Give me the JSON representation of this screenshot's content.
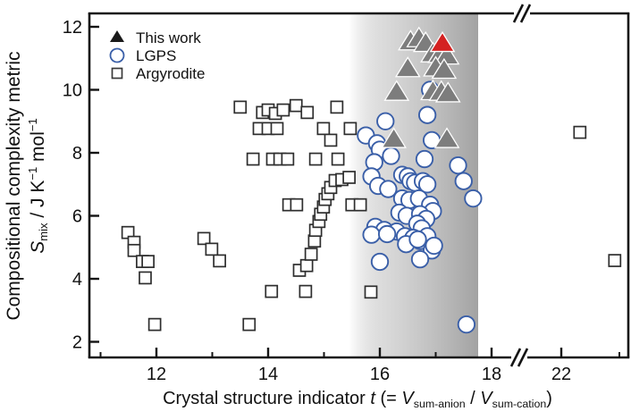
{
  "chart_data": {
    "type": "scatter",
    "title": "",
    "xlabel_parts": [
      {
        "text": "Crystal structure indicator ",
        "style": "normal"
      },
      {
        "text": "t",
        "style": "italic"
      },
      {
        "text": " (= ",
        "style": "normal"
      },
      {
        "text": "V",
        "style": "italic"
      },
      {
        "text": "sum-anion",
        "style": "sub"
      },
      {
        "text": " / ",
        "style": "normal"
      },
      {
        "text": "V",
        "style": "italic"
      },
      {
        "text": "sum-cation",
        "style": "sub"
      },
      {
        "text": ")",
        "style": "normal"
      }
    ],
    "ylabel_line1": "Compositional complexity metric",
    "ylabel_line2_parts": [
      {
        "text": "S",
        "style": "italic"
      },
      {
        "text": "mix",
        "style": "sub"
      },
      {
        "text": " / J K",
        "style": "normal"
      },
      {
        "text": "−1",
        "style": "sup"
      },
      {
        "text": " mol",
        "style": "normal"
      },
      {
        "text": "−1",
        "style": "sup"
      }
    ],
    "x_ticks_major": [
      12,
      14,
      16,
      18,
      22
    ],
    "x_ticks_minor": [
      11,
      13,
      15,
      17,
      23
    ],
    "y_ticks_major": [
      2,
      4,
      6,
      8,
      10,
      12
    ],
    "x_axis_break_between": [
      18,
      22
    ],
    "xlim": [
      10.85,
      23.2
    ],
    "ylim": [
      1.45,
      12.43
    ],
    "grid": false,
    "legend_position": "top-left-inside",
    "shaded_band": {
      "t_start": 15.44,
      "t_end": 17.76,
      "edge_color": "#a2a2a2"
    },
    "colors": {
      "lgps_blue": "#3a5fa8",
      "triangle_gray": "#7d7d7d",
      "highlight_red": "#d42222",
      "square_stroke": "#2e2e2e",
      "axis": "#141414"
    },
    "legend": [
      {
        "label": "This work",
        "marker": "triangle",
        "color": "#1a1a1a"
      },
      {
        "label": "LGPS",
        "marker": "circle",
        "color": "#3a5fa8"
      },
      {
        "label": "Argyrodite",
        "marker": "square",
        "color": "#3a3a3a"
      }
    ],
    "series": [
      {
        "name": "Argyrodite",
        "marker": "square",
        "points": [
          [
            13.5,
            9.45
          ],
          [
            13.9,
            9.28
          ],
          [
            14.0,
            9.36
          ],
          [
            14.13,
            9.25
          ],
          [
            14.27,
            9.36
          ],
          [
            14.5,
            9.5
          ],
          [
            14.7,
            9.28
          ],
          [
            15.23,
            9.45
          ],
          [
            13.84,
            8.77
          ],
          [
            14.0,
            8.77
          ],
          [
            14.16,
            8.77
          ],
          [
            14.99,
            8.77
          ],
          [
            15.47,
            8.77
          ],
          [
            15.12,
            8.4
          ],
          [
            13.73,
            7.8
          ],
          [
            14.08,
            7.8
          ],
          [
            14.21,
            7.8
          ],
          [
            14.35,
            7.8
          ],
          [
            14.85,
            7.8
          ],
          [
            15.25,
            7.8
          ],
          [
            14.37,
            6.35
          ],
          [
            14.51,
            6.35
          ],
          [
            15.5,
            6.35
          ],
          [
            15.65,
            6.35
          ],
          [
            14.56,
            4.27
          ],
          [
            14.69,
            4.42
          ],
          [
            14.77,
            4.78
          ],
          [
            14.83,
            5.2
          ],
          [
            14.85,
            5.54
          ],
          [
            14.91,
            5.82
          ],
          [
            14.94,
            6.05
          ],
          [
            14.99,
            6.28
          ],
          [
            15.02,
            6.52
          ],
          [
            15.07,
            6.7
          ],
          [
            15.12,
            6.9
          ],
          [
            15.2,
            7.12
          ],
          [
            15.32,
            7.15
          ],
          [
            15.45,
            7.22
          ],
          [
            11.49,
            5.47
          ],
          [
            11.6,
            5.16
          ],
          [
            11.6,
            4.9
          ],
          [
            11.75,
            4.55
          ],
          [
            11.85,
            4.55
          ],
          [
            11.8,
            4.03
          ],
          [
            11.97,
            2.55
          ],
          [
            12.85,
            5.28
          ],
          [
            12.99,
            4.94
          ],
          [
            13.13,
            4.57
          ],
          [
            13.66,
            2.55
          ],
          [
            14.06,
            3.6
          ],
          [
            14.67,
            3.6
          ],
          [
            15.84,
            3.58
          ],
          [
            22.32,
            8.65
          ],
          [
            22.92,
            4.58
          ]
        ]
      },
      {
        "name": "LGPS",
        "marker": "circle",
        "points": [
          [
            16.9,
            10.0
          ],
          [
            16.85,
            9.2
          ],
          [
            16.1,
            9.0
          ],
          [
            15.75,
            8.55
          ],
          [
            15.95,
            8.3
          ],
          [
            16.0,
            8.1
          ],
          [
            16.2,
            7.9
          ],
          [
            15.9,
            7.7
          ],
          [
            16.93,
            8.4
          ],
          [
            16.8,
            7.8
          ],
          [
            17.4,
            7.6
          ],
          [
            17.5,
            7.1
          ],
          [
            17.67,
            6.55
          ],
          [
            15.85,
            7.25
          ],
          [
            15.97,
            6.95
          ],
          [
            16.15,
            6.85
          ],
          [
            16.4,
            7.3
          ],
          [
            16.5,
            7.25
          ],
          [
            16.55,
            7.1
          ],
          [
            16.63,
            7.05
          ],
          [
            16.77,
            7.1
          ],
          [
            16.85,
            7.0
          ],
          [
            16.4,
            6.55
          ],
          [
            16.53,
            6.5
          ],
          [
            16.7,
            6.55
          ],
          [
            16.9,
            6.35
          ],
          [
            16.95,
            6.15
          ],
          [
            16.35,
            6.1
          ],
          [
            16.48,
            6.0
          ],
          [
            16.72,
            6.05
          ],
          [
            16.83,
            5.9
          ],
          [
            16.67,
            5.75
          ],
          [
            16.75,
            5.6
          ],
          [
            15.92,
            5.65
          ],
          [
            16.08,
            5.55
          ],
          [
            16.3,
            5.5
          ],
          [
            16.45,
            5.35
          ],
          [
            16.6,
            5.3
          ],
          [
            16.72,
            5.2
          ],
          [
            16.85,
            5.35
          ],
          [
            15.85,
            5.4
          ],
          [
            16.13,
            5.42
          ],
          [
            16.47,
            5.1
          ],
          [
            16.68,
            5.25
          ],
          [
            16.93,
            4.9
          ],
          [
            16.97,
            5.05
          ],
          [
            16.72,
            4.62
          ],
          [
            16.0,
            4.54
          ],
          [
            17.55,
            2.55
          ]
        ]
      },
      {
        "name": "This work",
        "marker": "triangle",
        "points": [
          [
            16.55,
            11.5
          ],
          [
            16.7,
            11.6
          ],
          [
            16.82,
            11.45
          ],
          [
            16.95,
            11.12
          ],
          [
            17.08,
            11.1
          ],
          [
            17.2,
            11.05
          ],
          [
            16.5,
            10.65
          ],
          [
            17.0,
            10.67
          ],
          [
            17.15,
            10.6
          ],
          [
            16.3,
            9.9
          ],
          [
            16.95,
            9.92
          ],
          [
            17.1,
            9.9
          ],
          [
            17.22,
            9.85
          ],
          [
            16.25,
            8.4
          ],
          [
            17.2,
            8.4
          ]
        ],
        "highlight_point": [
          17.12,
          11.45
        ]
      }
    ]
  }
}
